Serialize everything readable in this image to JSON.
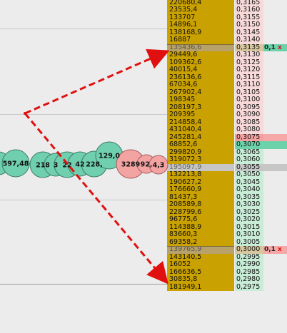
{
  "ladder": [
    {
      "volume": "220680,4",
      "price": "0,3165"
    },
    {
      "volume": "23535,4",
      "price": "0,3160"
    },
    {
      "volume": "133707",
      "price": "0,3155"
    },
    {
      "volume": "14896,1",
      "price": "0,3150"
    },
    {
      "volume": "138168,9",
      "price": "0,3145"
    },
    {
      "volume": "16887",
      "price": "0,3140"
    },
    {
      "volume": "135436,6",
      "price": "0,3135",
      "order": "0,1",
      "order_cancel": "x"
    },
    {
      "volume": "29449,6",
      "price": "0,3130"
    },
    {
      "volume": "109362,6",
      "price": "0,3125"
    },
    {
      "volume": "40015,4",
      "price": "0,3120"
    },
    {
      "volume": "236136,6",
      "price": "0,3115"
    },
    {
      "volume": "67034,6",
      "price": "0,3110"
    },
    {
      "volume": "267902,4",
      "price": "0,3105"
    },
    {
      "volume": "198345",
      "price": "0,3100"
    },
    {
      "volume": "208197,3",
      "price": "0,3095"
    },
    {
      "volume": "209395",
      "price": "0,3090"
    },
    {
      "volume": "214858,4",
      "price": "0,3085"
    },
    {
      "volume": "431040,4",
      "price": "0,3080"
    },
    {
      "volume": "245281,4",
      "price": "0,3075"
    },
    {
      "volume": "68852,6",
      "price": "0,3070"
    },
    {
      "volume": "299820,9",
      "price": "0,3065"
    },
    {
      "volume": "319072,3",
      "price": "0,3060"
    },
    {
      "volume": "195097,9",
      "price": "0,3055"
    },
    {
      "volume": "132213,8",
      "price": "0,3050"
    },
    {
      "volume": "190627,2",
      "price": "0,3045"
    },
    {
      "volume": "176660,9",
      "price": "0,3040"
    },
    {
      "volume": "81437,3",
      "price": "0,3035"
    },
    {
      "volume": "208589,8",
      "price": "0,3030"
    },
    {
      "volume": "228799,6",
      "price": "0,3025"
    },
    {
      "volume": "96775,6",
      "price": "0,3020"
    },
    {
      "volume": "114388,9",
      "price": "0,3015"
    },
    {
      "volume": "83660,3",
      "price": "0,3010"
    },
    {
      "volume": "69358,2",
      "price": "0,3005"
    },
    {
      "volume": "139765,9",
      "price": "0,3000",
      "order": "0,1",
      "order_cancel": "x"
    },
    {
      "volume": "143140,5",
      "price": "0,2995"
    },
    {
      "volume": "16052",
      "price": "0,2990"
    },
    {
      "volume": "166636,5",
      "price": "0,2985"
    },
    {
      "volume": "30835,8",
      "price": "0,2980"
    },
    {
      "volume": "181949,1",
      "price": "0,2975"
    }
  ],
  "trades": [
    {
      "label": "597,48",
      "side": "buy"
    },
    {
      "label": "218",
      "side": "buy"
    },
    {
      "label": "3",
      "side": "buy"
    },
    {
      "label": "22",
      "side": "buy"
    },
    {
      "label": "42",
      "side": "buy"
    },
    {
      "label": "228,",
      "side": "buy"
    },
    {
      "label": "129,0",
      "side": "buy"
    },
    {
      "label": "3289",
      "side": "sell"
    },
    {
      "label": "92,",
      "side": "sell"
    },
    {
      "label": "4,3",
      "side": "sell"
    }
  ],
  "colors": {
    "volume_bg": "#c9a100",
    "ask_bg": "#f7d9d9",
    "bid_bg": "#c9ecd7",
    "last_sell": "#f4a0a0",
    "last_buy": "#6bd2a9",
    "buy_bubble": "#6fcfae",
    "sell_bubble": "#f4a3a3",
    "arrow": "#e01010"
  }
}
